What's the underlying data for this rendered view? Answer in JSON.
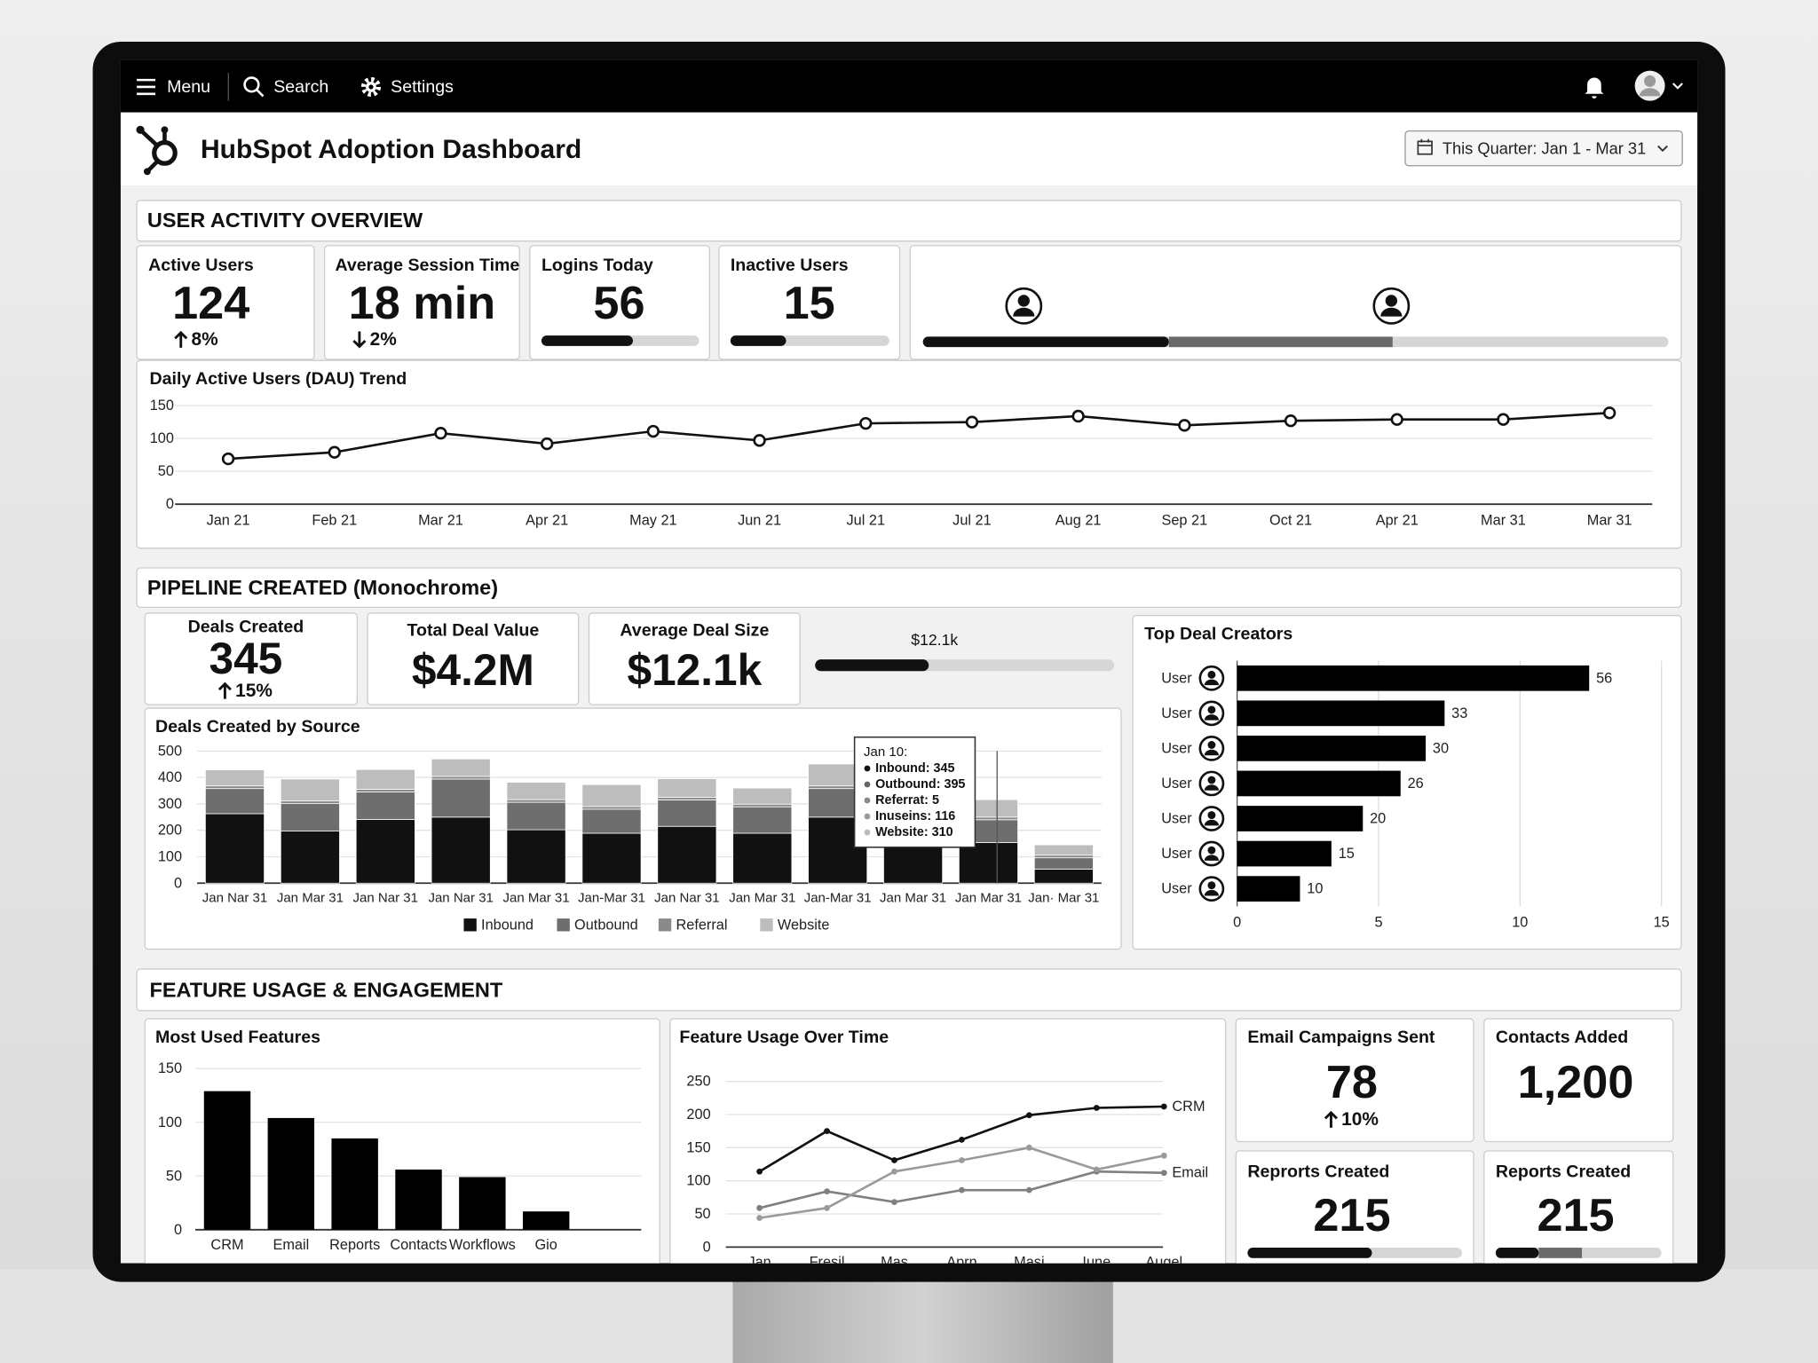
{
  "nav": {
    "menu": "Menu",
    "search": "Search",
    "settings": "Settings"
  },
  "header": {
    "title": "HubSpot Adoption Dashboard",
    "date_range": "This Quarter: Jan 1 - Mar 31"
  },
  "user_activity": {
    "title": "USER ACTIVITY OVERVIEW",
    "kpis": [
      {
        "label": "Active Users",
        "value": "124",
        "change": "8%",
        "direction": "up"
      },
      {
        "label": "Average Session Time",
        "value": "18 min",
        "change": "2%",
        "direction": "down"
      },
      {
        "label": "Logins Today",
        "value": "56",
        "segments": [
          58
        ]
      },
      {
        "label": "Inactive Users",
        "value": "15",
        "segments": [
          35
        ]
      }
    ],
    "segment_bar": [
      33,
      30
    ],
    "dau": {
      "type": "line",
      "title": "Daily Active Users (DAU) Trend",
      "categories": [
        "Jan 21",
        "Feb 21",
        "Mar 21",
        "Apr 21",
        "May 21",
        "Jun 21",
        "Jul 21",
        "Jul 21",
        "Aug 21",
        "Sep 21",
        "Oct 21",
        "Apr 21",
        "Mar 31",
        "Mar 31"
      ],
      "values": [
        69,
        79,
        108,
        92,
        111,
        97,
        123,
        125,
        134,
        120,
        127,
        129,
        129,
        139
      ],
      "color": "#111111",
      "ylim": [
        0,
        150
      ],
      "yticks": [
        0,
        50,
        100,
        150
      ],
      "grid": true
    }
  },
  "pipeline": {
    "title": "PIPELINE CREATED (Monochrome)",
    "kpis": [
      {
        "label": "Deals Created",
        "value": "345",
        "change": "15%",
        "direction": "up"
      },
      {
        "label": "Total Deal Value",
        "value": "$4.2M"
      },
      {
        "label": "Average Deal Size",
        "value": "$12.1k"
      }
    ],
    "deal_size_bar": {
      "label": "$12.1k",
      "segments": [
        38
      ]
    },
    "by_source": {
      "type": "stacked_bar",
      "title": "Deals Created by Source",
      "categories": [
        "Jan Nar 31",
        "Jan Mar 31",
        "Jan Nar 31",
        "Jan Nar 31",
        "Jan Mar 31",
        "Jan-Mar 31",
        "Jan Nar 31",
        "Jan Mar 31",
        "Jan-Mar 31",
        "Jan Mar 31",
        "Jan Mar 31",
        "Jan· Mar 31"
      ],
      "series": [
        {
          "name": "Inbound",
          "color": "#111111",
          "values": [
            263,
            197,
            241,
            250,
            202,
            189,
            215,
            189,
            250,
            180,
            154,
            53
          ]
        },
        {
          "name": "Outbound",
          "color": "#6e6e6e",
          "values": [
            95,
            104,
            104,
            144,
            104,
            91,
            100,
            100,
            108,
            90,
            86,
            43
          ]
        },
        {
          "name": "Referral",
          "color": "#8a8a8a",
          "values": [
            10,
            10,
            10,
            10,
            10,
            10,
            10,
            10,
            10,
            10,
            10,
            10
          ]
        },
        {
          "name": "Website",
          "color": "#bdbdbd",
          "values": [
            61,
            83,
            75,
            66,
            66,
            83,
            70,
            61,
            83,
            60,
            66,
            39
          ]
        }
      ],
      "ylim": [
        0,
        500
      ],
      "yticks": [
        0,
        100,
        200,
        300,
        400,
        500
      ],
      "grid": true,
      "legend": "bottom",
      "tooltip": {
        "title": "Jan 10:",
        "lines": [
          "Inbound: 345",
          "Outbound: 395",
          "Referrat: 5",
          "Inuseins: 116",
          "Website: 310"
        ]
      }
    },
    "top_creators": {
      "type": "hbar",
      "title": "Top Deal Creators",
      "categories": [
        "User",
        "User",
        "User",
        "User",
        "User",
        "User",
        "User"
      ],
      "values": [
        56,
        33,
        30,
        26,
        20,
        15,
        10
      ],
      "color": "#000000",
      "xlim": [
        0,
        67.5
      ],
      "xticks": [
        0,
        {
          "value": 22.5,
          "label": "5"
        },
        {
          "value": 45,
          "label": "10"
        },
        {
          "value": 67.5,
          "label": "15"
        }
      ],
      "grid": true
    }
  },
  "features": {
    "title": "FEATURE USAGE & ENGAGEMENT",
    "most_used": {
      "type": "bar",
      "title": "Most Used Features",
      "categories": [
        "CRM",
        "Email",
        "Reports",
        "Contacts",
        "Workflows",
        "Gio"
      ],
      "values": [
        129,
        104,
        85,
        56,
        49,
        17
      ],
      "color": "#000000",
      "ylim": [
        0,
        150
      ],
      "yticks": [
        0,
        50,
        100,
        150
      ],
      "grid": true
    },
    "over_time": {
      "type": "line",
      "title": "Feature Usage Over Time",
      "categories": [
        "Jan",
        "Fresil",
        "Mas",
        "Aprn",
        "Masi",
        "Iune",
        "Augel"
      ],
      "series": [
        {
          "name": "CRM",
          "color": "#111111",
          "values": [
            114,
            175,
            131,
            162,
            199,
            210,
            212
          ]
        },
        {
          "name": "Email",
          "color": "#808080",
          "values": [
            59,
            84,
            68,
            86,
            86,
            114,
            112
          ]
        },
        {
          "color": "#9a9a9a",
          "values": [
            44,
            59,
            114,
            131,
            150,
            117,
            138
          ]
        }
      ],
      "ylim": [
        0,
        250
      ],
      "yticks": [
        0,
        50,
        100,
        150,
        200,
        250
      ],
      "grid": true
    },
    "kpis": [
      {
        "label": "Email Campaigns Sent",
        "value": "78",
        "change": "10%",
        "direction": "up"
      },
      {
        "label": "Contacts Added",
        "value": "1,200"
      },
      {
        "label": "Reprorts Created",
        "value": "215",
        "segments": [
          58
        ]
      },
      {
        "label": "Reports Created",
        "value": "215",
        "segments": [
          26,
          26
        ]
      }
    ]
  }
}
